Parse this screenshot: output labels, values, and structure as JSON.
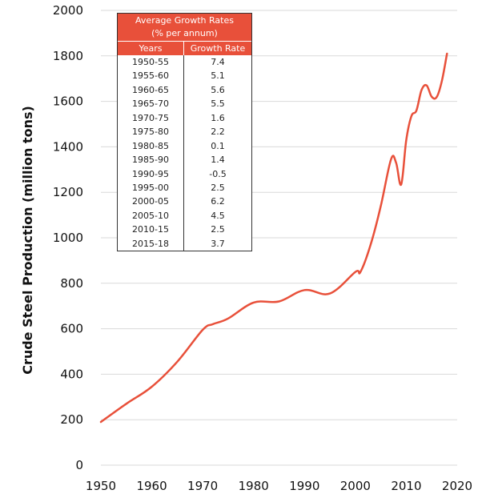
{
  "chart_data": {
    "type": "line",
    "ylabel": "Crude Steel Production (million tons)",
    "xlim": [
      1950,
      2020
    ],
    "ylim": [
      0,
      2000
    ],
    "x_ticks": [
      "1950",
      "1960",
      "1970",
      "1980",
      "1990",
      "2000",
      "2010",
      "2020"
    ],
    "y_ticks": [
      "0",
      "200",
      "400",
      "600",
      "800",
      "1000",
      "1200",
      "1400",
      "1600",
      "1800",
      "2000"
    ],
    "grid": "horizontal",
    "line_color": "#e8503a",
    "series": [
      {
        "x": [
          1950,
          1955,
          1960,
          1965,
          1970,
          1972,
          1975,
          1980,
          1985,
          1990,
          1995,
          2000,
          2001,
          2003,
          2005,
          2007,
          2008,
          2009,
          2010,
          2011,
          2012,
          2013,
          2014,
          2015,
          2016,
          2017,
          2018
        ],
        "y": [
          190,
          270,
          345,
          455,
          595,
          620,
          645,
          715,
          720,
          770,
          755,
          850,
          850,
          970,
          1140,
          1345,
          1330,
          1235,
          1430,
          1535,
          1560,
          1650,
          1670,
          1620,
          1620,
          1690,
          1810
        ]
      }
    ],
    "table": {
      "title": "Average Growth Rates",
      "subtitle": "(% per annum)",
      "columns": [
        "Years",
        "Growth Rate"
      ],
      "rows": [
        [
          "1950-55",
          "7.4"
        ],
        [
          "1955-60",
          "5.1"
        ],
        [
          "1960-65",
          "5.6"
        ],
        [
          "1965-70",
          "5.5"
        ],
        [
          "1970-75",
          "1.6"
        ],
        [
          "1975-80",
          "2.2"
        ],
        [
          "1980-85",
          "0.1"
        ],
        [
          "1985-90",
          "1.4"
        ],
        [
          "1990-95",
          "-0.5"
        ],
        [
          "1995-00",
          "2.5"
        ],
        [
          "2000-05",
          "6.2"
        ],
        [
          "2005-10",
          "4.5"
        ],
        [
          "2010-15",
          "2.5"
        ],
        [
          "2015-18",
          "3.7"
        ]
      ]
    }
  }
}
